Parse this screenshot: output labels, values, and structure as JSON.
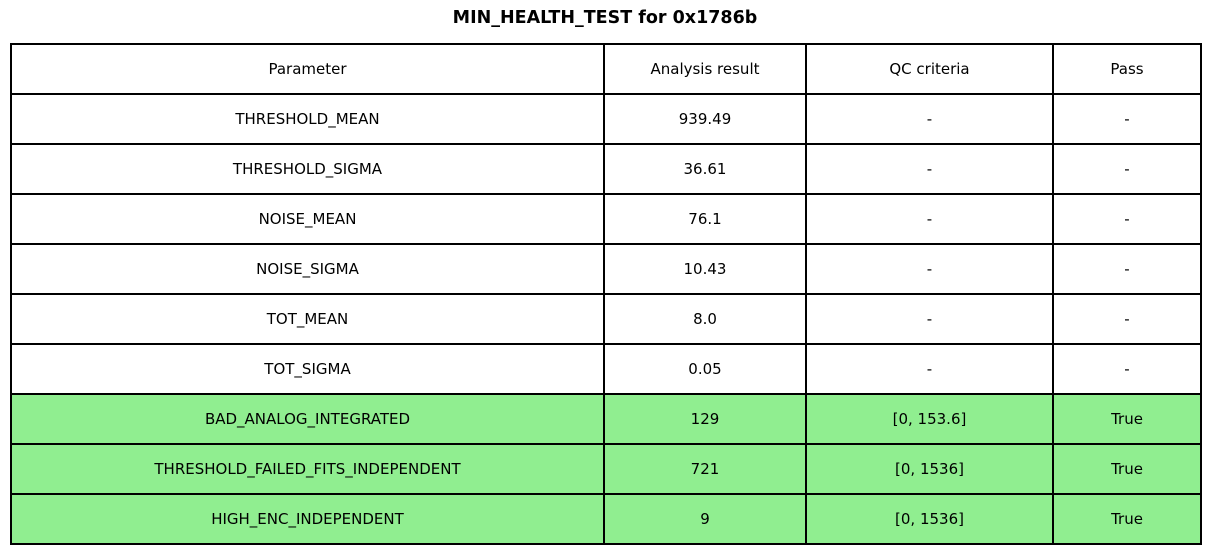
{
  "title": "MIN_HEALTH_TEST for 0x1786b",
  "chart_data": {
    "type": "table",
    "title": "MIN_HEALTH_TEST for 0x1786b",
    "columns": [
      "Parameter",
      "Analysis result",
      "QC criteria",
      "Pass"
    ],
    "rows": [
      {
        "parameter": "THRESHOLD_MEAN",
        "analysis_result": "939.49",
        "qc_criteria": "-",
        "pass": "-",
        "highlighted": false
      },
      {
        "parameter": "THRESHOLD_SIGMA",
        "analysis_result": "36.61",
        "qc_criteria": "-",
        "pass": "-",
        "highlighted": false
      },
      {
        "parameter": "NOISE_MEAN",
        "analysis_result": "76.1",
        "qc_criteria": "-",
        "pass": "-",
        "highlighted": false
      },
      {
        "parameter": "NOISE_SIGMA",
        "analysis_result": "10.43",
        "qc_criteria": "-",
        "pass": "-",
        "highlighted": false
      },
      {
        "parameter": "TOT_MEAN",
        "analysis_result": "8.0",
        "qc_criteria": "-",
        "pass": "-",
        "highlighted": false
      },
      {
        "parameter": "TOT_SIGMA",
        "analysis_result": "0.05",
        "qc_criteria": "-",
        "pass": "-",
        "highlighted": false
      },
      {
        "parameter": "BAD_ANALOG_INTEGRATED",
        "analysis_result": "129",
        "qc_criteria": "[0, 153.6]",
        "pass": "True",
        "highlighted": true
      },
      {
        "parameter": "THRESHOLD_FAILED_FITS_INDEPENDENT",
        "analysis_result": "721",
        "qc_criteria": "[0, 1536]",
        "pass": "True",
        "highlighted": true
      },
      {
        "parameter": "HIGH_ENC_INDEPENDENT",
        "analysis_result": "9",
        "qc_criteria": "[0, 1536]",
        "pass": "True",
        "highlighted": true
      }
    ],
    "highlight_color": "#90EE90",
    "border_color": "#000000",
    "background_color": "#ffffff"
  }
}
